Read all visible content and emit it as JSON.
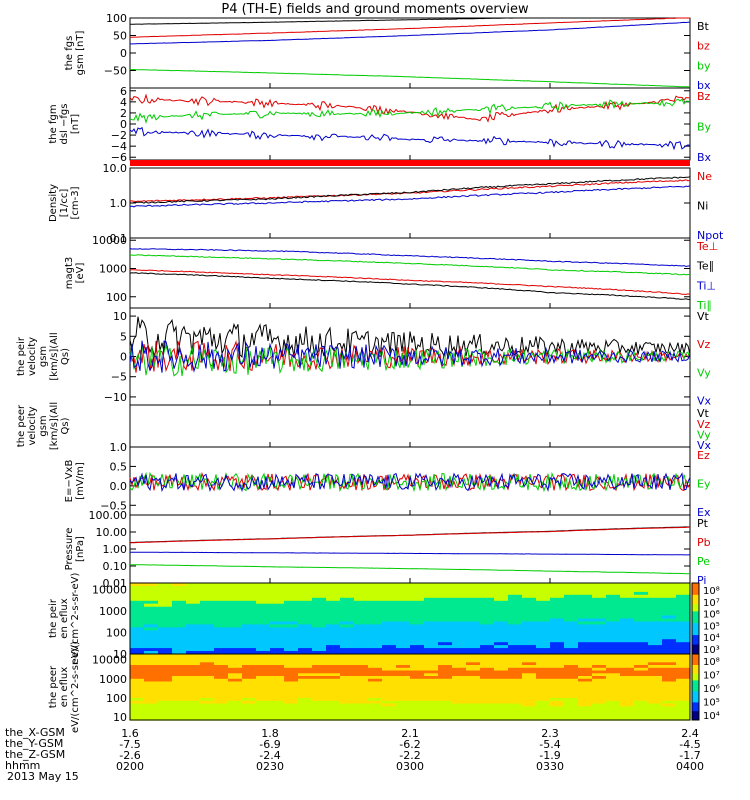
{
  "title": "P4 (TH-E) fields and ground moments overview",
  "date": "2013 May 15",
  "colors": {
    "black": "#000000",
    "red": "#e00000",
    "green": "#00cc00",
    "blue": "#0000cc",
    "bar_red": "#ff0000"
  },
  "ephemeris": {
    "rows": [
      {
        "label": "the_X-GSM",
        "values": [
          "1.6",
          "1.8",
          "2.1",
          "2.3",
          "2.4"
        ]
      },
      {
        "label": "the_Y-GSM",
        "values": [
          "-7.5",
          "-6.9",
          "-6.2",
          "-5.4",
          "-4.5"
        ]
      },
      {
        "label": "the_Z-GSM",
        "values": [
          "-2.6",
          "-2.4",
          "-2.2",
          "-1.9",
          "-1.7"
        ]
      },
      {
        "label": "hhmm",
        "values": [
          "0200",
          "0230",
          "0300",
          "0330",
          "0400"
        ]
      }
    ]
  },
  "chart_data": [
    {
      "id": "fgs",
      "type": "line",
      "ylabel": "the fgs gsm [nT]",
      "ylim": [
        -100,
        100
      ],
      "yticks": [
        {
          "v": 100,
          "label": "100"
        },
        {
          "v": 50,
          "label": "50"
        },
        {
          "v": 0,
          "label": "0"
        },
        {
          "v": -50,
          "label": "−50"
        }
      ],
      "x": [
        "0200",
        "0230",
        "0300",
        "0330",
        "0400"
      ],
      "series": [
        {
          "name": "Bt",
          "color": "black",
          "values": [
            82,
            88,
            95,
            102,
            108
          ]
        },
        {
          "name": "bz",
          "color": "red",
          "values": [
            45,
            57,
            70,
            86,
            101
          ]
        },
        {
          "name": "by",
          "color": "green",
          "values": [
            -47,
            -57,
            -68,
            -82,
            -97
          ]
        },
        {
          "name": "bx",
          "color": "blue",
          "values": [
            26,
            36,
            50,
            66,
            88
          ]
        }
      ]
    },
    {
      "id": "fgm",
      "type": "line",
      "ylabel": "the fgm dsl −fgs [nT]",
      "ylim": [
        -6.5,
        6.5
      ],
      "yticks": [
        {
          "v": 6,
          "label": "6"
        },
        {
          "v": 4,
          "label": "4"
        },
        {
          "v": 2,
          "label": "2"
        },
        {
          "v": 0,
          "label": "0"
        },
        {
          "v": -2,
          "label": "−2"
        },
        {
          "v": -4,
          "label": "−4"
        },
        {
          "v": -6,
          "label": "−6"
        }
      ],
      "x": [
        "0200",
        "0215",
        "0230",
        "0245",
        "0300",
        "0315",
        "0330",
        "0345",
        "0400"
      ],
      "series": [
        {
          "name": "Bz",
          "color": "red",
          "values": [
            4.5,
            4.2,
            3.8,
            3.2,
            2.2,
            0.8,
            2.6,
            3.4,
            4.6
          ]
        },
        {
          "name": "By",
          "color": "green",
          "values": [
            1.0,
            1.6,
            2.0,
            1.8,
            2.0,
            2.6,
            3.2,
            3.6,
            4.0
          ]
        },
        {
          "name": "Bx",
          "color": "blue",
          "values": [
            -1.4,
            -1.6,
            -2.0,
            -2.2,
            -2.8,
            -3.0,
            -3.3,
            -3.6,
            -3.9
          ]
        }
      ]
    },
    {
      "id": "density",
      "type": "line",
      "ylabel": "Density [1/cc] [cm-3]",
      "yscale": "log",
      "ylim": [
        0.1,
        10
      ],
      "yticks": [
        {
          "v": 10,
          "label": "10.0"
        },
        {
          "v": 1,
          "label": "1.0"
        },
        {
          "v": 0.1,
          "label": "0.1"
        }
      ],
      "x": [
        "0200",
        "0230",
        "0300",
        "0330",
        "0400"
      ],
      "series": [
        {
          "name": "Ne",
          "color": "red",
          "values": [
            1.1,
            1.4,
            1.9,
            3.0,
            4.5
          ]
        },
        {
          "name": "Ni",
          "color": "black",
          "values": [
            1.0,
            1.3,
            2.0,
            3.5,
            5.5
          ]
        },
        {
          "name": "Npot",
          "color": "blue",
          "values": [
            0.8,
            1.0,
            1.3,
            2.0,
            3.0
          ]
        }
      ]
    },
    {
      "id": "temperature",
      "type": "line",
      "ylabel": "magt3 [eV]",
      "yscale": "log",
      "ylim": [
        40,
        12000
      ],
      "yticks": [
        {
          "v": 10000,
          "label": "10000"
        },
        {
          "v": 1000,
          "label": "1000"
        },
        {
          "v": 100,
          "label": "100"
        }
      ],
      "x": [
        "0200",
        "0230",
        "0300",
        "0330",
        "0400"
      ],
      "series": [
        {
          "name": "Te⊥",
          "color": "red",
          "values": [
            900,
            600,
            380,
            230,
            120
          ]
        },
        {
          "name": "Te∥",
          "color": "black",
          "values": [
            700,
            450,
            280,
            140,
            80
          ]
        },
        {
          "name": "Ti⊥",
          "color": "blue",
          "values": [
            5000,
            4200,
            2800,
            1800,
            1200
          ]
        },
        {
          "name": "Ti∥",
          "color": "green",
          "values": [
            3000,
            2200,
            1500,
            900,
            600
          ]
        }
      ]
    },
    {
      "id": "peir_velocity",
      "type": "line",
      "ylabel": "the peir velocity gsm [km/s](All Qs)",
      "ylim": [
        -12,
        12
      ],
      "yticks": [
        {
          "v": 10,
          "label": "10"
        },
        {
          "v": 5,
          "label": "5"
        },
        {
          "v": 0,
          "label": "0"
        },
        {
          "v": -5,
          "label": "−5"
        },
        {
          "v": -10,
          "label": "−10"
        }
      ],
      "x": [
        "0200",
        "0230",
        "0300",
        "0330",
        "0400"
      ],
      "series": [
        {
          "name": "Vt",
          "color": "black",
          "values": [
            5,
            4,
            3,
            2.5,
            2
          ]
        },
        {
          "name": "Vz",
          "color": "red",
          "values": [
            0,
            0,
            0,
            0,
            0
          ]
        },
        {
          "name": "Vy",
          "color": "green",
          "values": [
            -1,
            -1,
            -0.5,
            0,
            0
          ]
        },
        {
          "name": "Vx",
          "color": "blue",
          "values": [
            0,
            0,
            0,
            0,
            0
          ]
        }
      ]
    },
    {
      "id": "peer_velocity",
      "type": "line",
      "ylabel": "the peer velocity gsm [km/s](All Qs)",
      "series": [
        {
          "name": "Vt",
          "color": "black",
          "values": []
        },
        {
          "name": "Vz",
          "color": "red",
          "values": []
        },
        {
          "name": "Vy",
          "color": "green",
          "values": []
        },
        {
          "name": "Vx",
          "color": "blue",
          "values": []
        }
      ]
    },
    {
      "id": "efield",
      "type": "line",
      "ylabel": "E=−VxB [mV/m]",
      "ylim": [
        -0.75,
        1.0
      ],
      "yticks": [
        {
          "v": 1.0,
          "label": "1.0"
        },
        {
          "v": 0.5,
          "label": "0.5"
        },
        {
          "v": 0.0,
          "label": "0.0"
        },
        {
          "v": -0.5,
          "label": "−0.5"
        }
      ],
      "x": [
        "0200",
        "0230",
        "0300",
        "0330",
        "0400"
      ],
      "series": [
        {
          "name": "Ez",
          "color": "red",
          "values": [
            0.1,
            0.1,
            0.1,
            0.1,
            0.1
          ]
        },
        {
          "name": "Ey",
          "color": "green",
          "values": [
            0.1,
            0.1,
            0.1,
            0.1,
            0.1
          ]
        },
        {
          "name": "Ex",
          "color": "blue",
          "values": [
            0.1,
            0.1,
            0.1,
            0.1,
            0.1
          ]
        }
      ]
    },
    {
      "id": "pressure",
      "type": "line",
      "ylabel": "Pressure [nPa]",
      "yscale": "log",
      "ylim": [
        0.01,
        100
      ],
      "yticks": [
        {
          "v": 100,
          "label": "100.00"
        },
        {
          "v": 10,
          "label": "10.00"
        },
        {
          "v": 1,
          "label": "1.00"
        },
        {
          "v": 0.1,
          "label": "0.10"
        },
        {
          "v": 0.01,
          "label": "0.01"
        }
      ],
      "x": [
        "0200",
        "0230",
        "0300",
        "0330",
        "0400"
      ],
      "series": [
        {
          "name": "Pt",
          "color": "black",
          "values": [
            2.4,
            4.0,
            6.5,
            11,
            20
          ]
        },
        {
          "name": "Pb",
          "color": "red",
          "values": [
            2.3,
            3.9,
            6.4,
            10.5,
            19
          ]
        },
        {
          "name": "Pe",
          "color": "green",
          "values": [
            0.12,
            0.09,
            0.07,
            0.05,
            0.035
          ]
        },
        {
          "name": "Pi",
          "color": "blue",
          "values": [
            0.65,
            0.6,
            0.55,
            0.5,
            0.45
          ]
        }
      ]
    },
    {
      "id": "peir_spectrogram",
      "type": "heatmap",
      "ylabel": "the peir en eflux eV/(cm^2-s-sr-eV)",
      "yscale": "log",
      "ylim": [
        10,
        20000
      ],
      "yticks": [
        {
          "v": 10000,
          "label": "10000"
        },
        {
          "v": 1000,
          "label": "1000"
        },
        {
          "v": 100,
          "label": "100"
        },
        {
          "v": 10,
          "label": "10"
        }
      ],
      "colorbar_labels": [
        "10⁸",
        "10⁷",
        "10⁶",
        "10⁵",
        "10⁴",
        "10³"
      ]
    },
    {
      "id": "peer_spectrogram",
      "type": "heatmap",
      "ylabel": "the peer en eflux eV/(cm^2-s-sr-eV)",
      "yscale": "log",
      "ylim": [
        7,
        20000
      ],
      "yticks": [
        {
          "v": 10000,
          "label": "10000"
        },
        {
          "v": 1000,
          "label": "1000"
        },
        {
          "v": 100,
          "label": "100"
        },
        {
          "v": 10,
          "label": "10"
        }
      ],
      "colorbar_labels": [
        "10⁸",
        "10⁷",
        "10⁶",
        "10⁵",
        "10⁴"
      ]
    }
  ]
}
